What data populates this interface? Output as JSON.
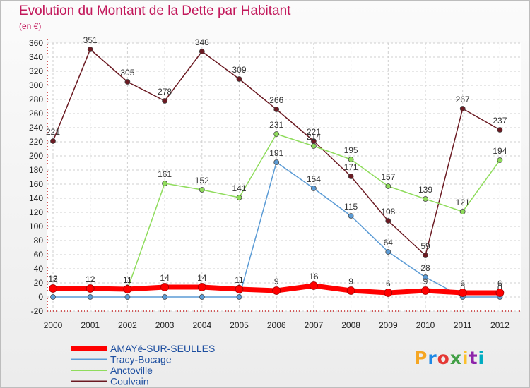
{
  "title": "Evolution du Montant de la Dette par Habitant",
  "subtitle": "(en €)",
  "logo": {
    "text": "Proxiti",
    "colors": [
      "#f5a623",
      "#1e88e5",
      "#e53935",
      "#43a047",
      "#fbc02d",
      "#8e24aa",
      "#00acc1"
    ]
  },
  "chart_data": {
    "type": "line",
    "x": [
      "2000",
      "2001",
      "2002",
      "2003",
      "2004",
      "2005",
      "2006",
      "2007",
      "2008",
      "2009",
      "2010",
      "2011",
      "2012"
    ],
    "ylim": [
      -20,
      360
    ],
    "yticks": [
      -20,
      0,
      20,
      40,
      60,
      80,
      100,
      120,
      140,
      160,
      180,
      200,
      220,
      240,
      260,
      280,
      300,
      320,
      340,
      360
    ],
    "grid": true,
    "legend_position": "bottom",
    "series": [
      {
        "name": "Coulvain",
        "color": "#6b1a22",
        "width": 1.5,
        "values": [
          221,
          351,
          305,
          278,
          348,
          309,
          266,
          221,
          171,
          108,
          59,
          267,
          237
        ],
        "labels": [
          "221",
          "351",
          "305",
          "278",
          "348",
          "309",
          "266",
          "221",
          "171",
          "108",
          "59",
          "267",
          "237"
        ]
      },
      {
        "name": "Anctoville",
        "color": "#8fdc5c",
        "width": 1.5,
        "values": [
          13,
          12,
          11,
          161,
          152,
          141,
          231,
          214,
          195,
          157,
          139,
          121,
          194
        ],
        "labels": [
          "13",
          "12",
          "11",
          "161",
          "152",
          "141",
          "231",
          "214",
          "195",
          "157",
          "139",
          "121",
          "194"
        ]
      },
      {
        "name": "Tracy-Bocage",
        "color": "#5b9bd5",
        "width": 1.5,
        "values": [
          0,
          0,
          0,
          0,
          0,
          0,
          191,
          154,
          115,
          64,
          28,
          0,
          0
        ],
        "labels": [
          "0",
          "0",
          "0",
          "0",
          "0",
          "0",
          "191",
          "154",
          "115",
          "64",
          "28",
          "0",
          "0"
        ]
      },
      {
        "name": "AMAYé-SUR-SEULLES",
        "color": "#ff0000",
        "width": 7,
        "values": [
          12,
          12,
          11,
          14,
          14,
          11,
          9,
          16,
          9,
          6,
          9,
          6,
          6
        ],
        "labels": [
          "12",
          "12",
          "11",
          "14",
          "14",
          "11",
          "9",
          "16",
          "9",
          "6",
          "9",
          "6",
          "6"
        ]
      }
    ],
    "legend_order": [
      "AMAYé-SUR-SEULLES",
      "Tracy-Bocage",
      "Anctoville",
      "Coulvain"
    ]
  }
}
